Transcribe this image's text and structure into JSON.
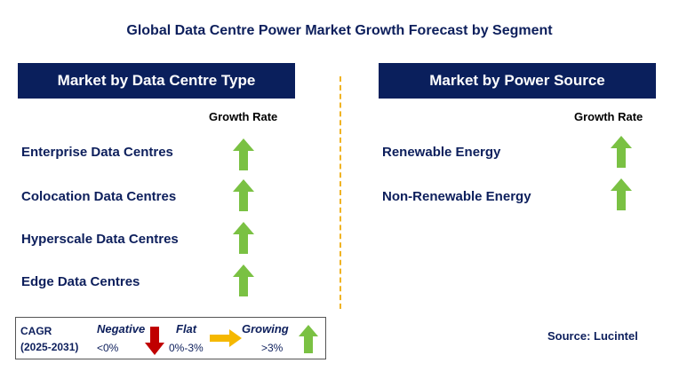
{
  "title": "Global Data Centre Power Market Growth Forecast by Segment",
  "left_panel": {
    "header": "Market by Data Centre Type",
    "growth_label": "Growth Rate",
    "items": [
      {
        "label": "Enterprise Data Centres",
        "trend": "growing"
      },
      {
        "label": "Colocation Data Centres",
        "trend": "growing"
      },
      {
        "label": "Hyperscale Data Centres",
        "trend": "growing"
      },
      {
        "label": "Edge Data Centres",
        "trend": "growing"
      }
    ]
  },
  "right_panel": {
    "header": "Market by Power Source",
    "growth_label": "Growth Rate",
    "items": [
      {
        "label": "Renewable Energy",
        "trend": "growing"
      },
      {
        "label": "Non-Renewable Energy",
        "trend": "growing"
      }
    ]
  },
  "legend": {
    "cagr_label": "CAGR",
    "period": "(2025-2031)",
    "negative_label": "Negative",
    "negative_range": "<0%",
    "flat_label": "Flat",
    "flat_range": "0%-3%",
    "growing_label": "Growing",
    "growing_range": ">3%"
  },
  "source": "Source: Lucintel",
  "colors": {
    "header_bg": "#0a1f5c",
    "text": "#0d1f5c",
    "growing": "#7ac143",
    "negative": "#c00000",
    "flat": "#f5b800",
    "divider": "#f0b323"
  }
}
